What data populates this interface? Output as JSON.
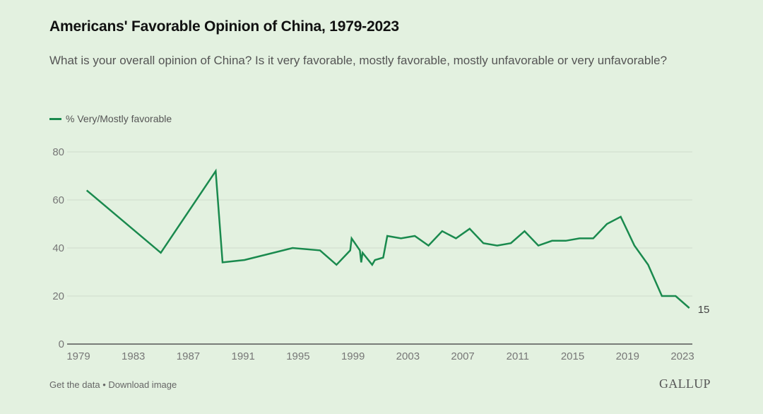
{
  "header": {
    "title": "Americans' Favorable Opinion of China, 1979-2023",
    "subtitle": "What is your overall opinion of China? Is it very favorable, mostly favorable, mostly unfavorable or very unfavorable?"
  },
  "footer": {
    "get_data": "Get the data",
    "separator": "•",
    "download": "Download image",
    "brand": "GALLUP"
  },
  "colors": {
    "series": "#1a8a4e",
    "grid": "#cfdccb",
    "axis": "#555555",
    "background": "#e3f1e0"
  },
  "chart_data": {
    "type": "line",
    "title": "Americans' Favorable Opinion of China, 1979-2023",
    "xlabel": "",
    "ylabel": "",
    "xlim": [
      1979,
      2023
    ],
    "ylim": [
      0,
      80
    ],
    "yticks": [
      0,
      20,
      40,
      60,
      80
    ],
    "xticks": [
      1979,
      1983,
      1987,
      1991,
      1995,
      1999,
      2003,
      2007,
      2011,
      2015,
      2019,
      2023
    ],
    "grid": true,
    "legend": "top-left",
    "series": [
      {
        "name": "% Very/Mostly favorable",
        "x": [
          1979.6,
          1985,
          1989,
          1989.5,
          1991.1,
          1994.6,
          1996.6,
          1997.8,
          1998.8,
          1998.9,
          1999.5,
          1999.6,
          1999.7,
          2000.4,
          2000.6,
          2001.2,
          2001.5,
          2002.5,
          2003.5,
          2004.5,
          2005.5,
          2006.5,
          2007.5,
          2008.5,
          2009.5,
          2010.5,
          2011.5,
          2012.5,
          2013.5,
          2014.5,
          2015.5,
          2016.5,
          2017.5,
          2018.5,
          2019.5,
          2020.5,
          2021.5,
          2022.5,
          2023.5
        ],
        "values": [
          64,
          38,
          72,
          34,
          35,
          40,
          39,
          33,
          39,
          44,
          39,
          34,
          38,
          33,
          35,
          36,
          45,
          44,
          45,
          41,
          47,
          44,
          48,
          42,
          41,
          42,
          47,
          41,
          43,
          43,
          44,
          44,
          50,
          53,
          41,
          33,
          20,
          20,
          15
        ]
      }
    ],
    "end_label": "15"
  }
}
